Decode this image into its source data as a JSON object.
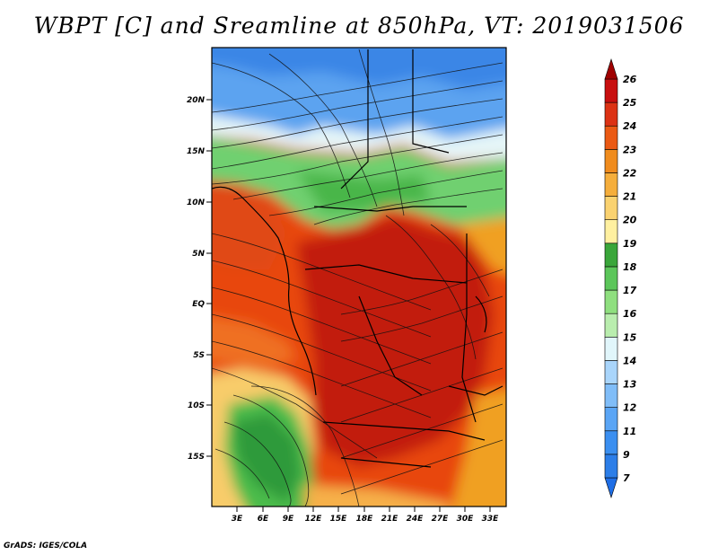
{
  "title": "WBPT [C] and Sreamline at 850hPa, VT: 2019031506",
  "credit": "GrADS: IGES/COLA",
  "lat_labels": [
    "20N",
    "15N",
    "10N",
    "5N",
    "EQ",
    "5S",
    "10S",
    "15S"
  ],
  "lon_labels": [
    "3E",
    "6E",
    "9E",
    "12E",
    "15E",
    "18E",
    "21E",
    "24E",
    "27E",
    "30E",
    "33E"
  ],
  "colorbar": {
    "labels": [
      "7",
      "9",
      "11",
      "12",
      "13",
      "14",
      "15",
      "16",
      "17",
      "18",
      "19",
      "20",
      "21",
      "22",
      "23",
      "24",
      "25",
      "26"
    ],
    "colors": [
      "#1e6ee6",
      "#2c7ee8",
      "#3b8ff0",
      "#5aa5f5",
      "#80bdf8",
      "#a9d5fb",
      "#e1f6fb",
      "#b9edae",
      "#8fdf7f",
      "#5cc65a",
      "#3aa63a",
      "#fff0a0",
      "#fad270",
      "#f5ae3c",
      "#f08c1e",
      "#eb5a14",
      "#dc3214",
      "#c80f0f",
      "#a00000"
    ]
  }
}
